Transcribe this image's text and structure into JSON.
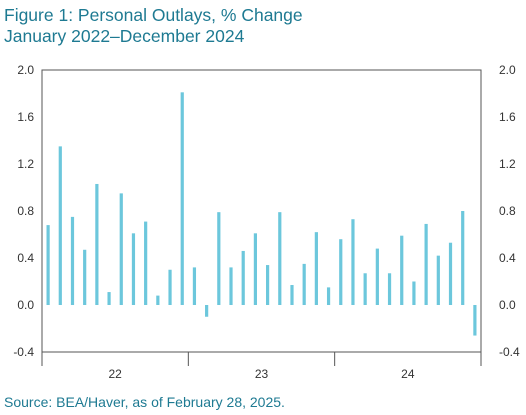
{
  "title_line1": "Figure 1: Personal Outlays, % Change",
  "title_line2": "January 2022–December 2024",
  "source": "Source: BEA/Haver, as of February 28, 2025.",
  "colors": {
    "bar": "#6cc7dc",
    "title": "#1e7a92",
    "axis": "#555555"
  },
  "chart_data": {
    "type": "bar",
    "title": "Figure 1: Personal Outlays, % Change",
    "subtitle": "January 2022–December 2024",
    "xlabel": "",
    "ylabel": "",
    "ylim": [
      -0.4,
      2.0
    ],
    "yticks": [
      "2.0",
      "1.6",
      "1.2",
      "0.8",
      "0.4",
      "0.0",
      "-0.4"
    ],
    "ytick_values": [
      2.0,
      1.6,
      1.2,
      0.8,
      0.4,
      0.0,
      -0.4
    ],
    "year_labels": [
      "22",
      "23",
      "24"
    ],
    "grid": false,
    "legend": "none",
    "categories": [
      "Jan 2022",
      "Feb 2022",
      "Mar 2022",
      "Apr 2022",
      "May 2022",
      "Jun 2022",
      "Jul 2022",
      "Aug 2022",
      "Sep 2022",
      "Oct 2022",
      "Nov 2022",
      "Dec 2022",
      "Jan 2023",
      "Feb 2023",
      "Mar 2023",
      "Apr 2023",
      "May 2023",
      "Jun 2023",
      "Jul 2023",
      "Aug 2023",
      "Sep 2023",
      "Oct 2023",
      "Nov 2023",
      "Dec 2023",
      "Jan 2024",
      "Feb 2024",
      "Mar 2024",
      "Apr 2024",
      "May 2024",
      "Jun 2024",
      "Jul 2024",
      "Aug 2024",
      "Sep 2024",
      "Oct 2024",
      "Nov 2024",
      "Dec 2024"
    ],
    "values": [
      0.68,
      1.35,
      0.75,
      0.47,
      1.03,
      0.11,
      0.95,
      0.61,
      0.71,
      0.08,
      0.3,
      1.81,
      0.32,
      -0.1,
      0.79,
      0.32,
      0.46,
      0.61,
      0.34,
      0.79,
      0.17,
      0.35,
      0.62,
      0.15,
      0.56,
      0.73,
      0.27,
      0.48,
      0.27,
      0.59,
      0.2,
      0.69,
      0.42,
      0.53,
      0.8,
      -0.26
    ]
  }
}
